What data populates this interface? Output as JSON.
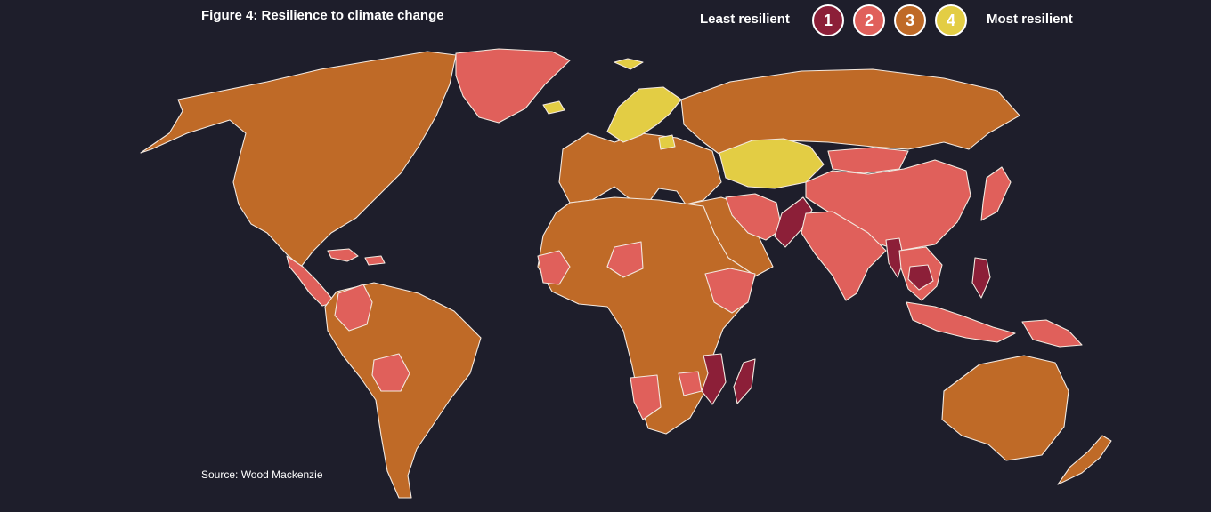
{
  "title": "Figure 4: Resilience to climate change",
  "legend": {
    "least_label": "Least resilient",
    "most_label": "Most resilient",
    "levels": [
      {
        "label": "1",
        "color": "#8c1f38"
      },
      {
        "label": "2",
        "color": "#e0605b"
      },
      {
        "label": "3",
        "color": "#bf6a27"
      },
      {
        "label": "4",
        "color": "#e3cd44"
      }
    ]
  },
  "source": "Source: Wood Mackenzie",
  "colors": {
    "background": "#1e1e2b",
    "border": "#f3e9e0"
  },
  "regions": {
    "north-america": 3,
    "greenland": 2,
    "central-america": 2,
    "caribbean": 2,
    "south-america": 3,
    "colombia": 2,
    "bolivia": 2,
    "europe": 3,
    "scandinavia": 4,
    "iceland": 4,
    "svalbard": 4,
    "baltic": 4,
    "russia": 3,
    "kazakhstan": 4,
    "china": 2,
    "mongolia": 2,
    "middle-east": 3,
    "iran": 2,
    "pakistan": 1,
    "india": 2,
    "myanmar": 1,
    "southeast-asia": 2,
    "cambodia": 1,
    "philippines": 1,
    "africa": 3,
    "west-africa": 2,
    "niger": 2,
    "horn-of-africa": 2,
    "mozambique": 1,
    "madagascar": 1,
    "namibia": 2,
    "zimbabwe": 2,
    "indonesia": 2,
    "papua": 2,
    "australia": 3,
    "new-zealand": 3,
    "japan": 2
  }
}
